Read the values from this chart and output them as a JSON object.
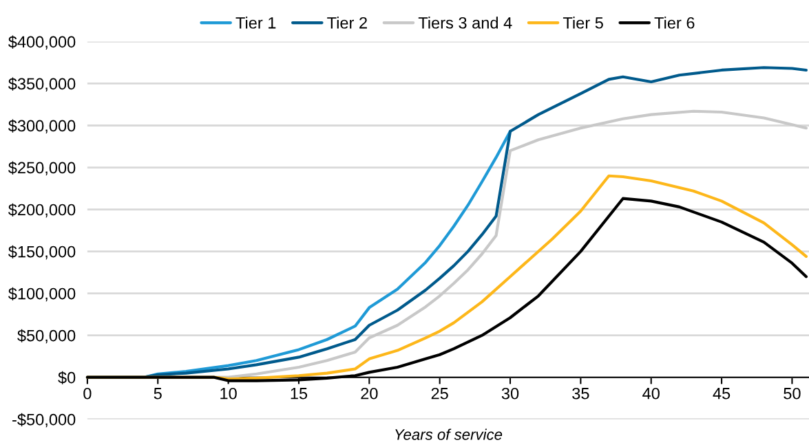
{
  "chart_data": {
    "type": "line",
    "xlabel": "Years of service",
    "xlim": [
      0,
      51.2
    ],
    "xticks": [
      0,
      5,
      10,
      15,
      20,
      25,
      30,
      35,
      40,
      45,
      50
    ],
    "ylim": [
      -50000,
      400000
    ],
    "yticks": [
      {
        "value": -50000,
        "label": "-$50,000"
      },
      {
        "value": 0,
        "label": "$0"
      },
      {
        "value": 50000,
        "label": "$50,000"
      },
      {
        "value": 100000,
        "label": "$100,000"
      },
      {
        "value": 150000,
        "label": "$150,000"
      },
      {
        "value": 200000,
        "label": "$200,000"
      },
      {
        "value": 250000,
        "label": "$250,000"
      },
      {
        "value": 300000,
        "label": "$300,000"
      },
      {
        "value": 350000,
        "label": "$350,000"
      },
      {
        "value": 400000,
        "label": "$400,000"
      }
    ],
    "grid": "y",
    "legend": "top",
    "line_style": "solid",
    "marker": "none",
    "series": [
      {
        "name": "Tier 1",
        "color": "#1f9ad6",
        "x": [
          0,
          4,
          5,
          7,
          10,
          12,
          15,
          17,
          19,
          20,
          22,
          24,
          25,
          26,
          27,
          28,
          29,
          30
        ],
        "values": [
          0,
          0,
          4000,
          7000,
          14000,
          20000,
          33000,
          45000,
          61000,
          83000,
          105000,
          137000,
          157000,
          180000,
          205000,
          233000,
          262000,
          293000
        ]
      },
      {
        "name": "Tier 2",
        "color": "#005a8c",
        "x": [
          0,
          4,
          5,
          7,
          10,
          12,
          15,
          17,
          19,
          20,
          22,
          24,
          25,
          26,
          27,
          28,
          29,
          30,
          32,
          35,
          37,
          38,
          40,
          42,
          45,
          48,
          50,
          51
        ],
        "values": [
          0,
          0,
          3000,
          5000,
          10000,
          15000,
          24000,
          34000,
          45000,
          62000,
          80000,
          104000,
          118000,
          133000,
          150000,
          170000,
          192000,
          293000,
          313000,
          338000,
          355000,
          358000,
          352000,
          360000,
          366000,
          369000,
          368000,
          366000
        ]
      },
      {
        "name": "Tiers 3 and 4",
        "color": "#c8c8c8",
        "x": [
          0,
          10,
          12,
          15,
          17,
          19,
          20,
          22,
          24,
          25,
          26,
          27,
          28,
          29,
          30,
          32,
          35,
          38,
          40,
          43,
          45,
          48,
          50,
          51
        ],
        "values": [
          0,
          0,
          4000,
          12000,
          20000,
          30000,
          47000,
          62000,
          84000,
          97000,
          112000,
          128000,
          147000,
          169000,
          270000,
          283000,
          297000,
          308000,
          313000,
          317000,
          316000,
          309000,
          301000,
          297000
        ]
      },
      {
        "name": "Tier 5",
        "color": "#fdb71a",
        "x": [
          0,
          9,
          10,
          12,
          15,
          17,
          19,
          20,
          22,
          24,
          25,
          26,
          28,
          30,
          33,
          35,
          37,
          38,
          40,
          43,
          45,
          48,
          50,
          51
        ],
        "values": [
          0,
          0,
          -2000,
          -1000,
          2000,
          5000,
          10000,
          22000,
          32000,
          47000,
          55000,
          65000,
          90000,
          120000,
          165000,
          198000,
          240000,
          239000,
          234000,
          222000,
          210000,
          184000,
          158000,
          144000
        ]
      },
      {
        "name": "Tier 6",
        "color": "#000000",
        "x": [
          0,
          9,
          10,
          12,
          15,
          17,
          19,
          20,
          22,
          24,
          25,
          26,
          28,
          30,
          32,
          35,
          38,
          40,
          42,
          45,
          48,
          50,
          51
        ],
        "values": [
          0,
          0,
          -4000,
          -4000,
          -3000,
          -1000,
          2000,
          6000,
          12000,
          22000,
          27000,
          34000,
          50000,
          71000,
          97000,
          150000,
          213000,
          210000,
          203000,
          185000,
          161000,
          136000,
          120000
        ]
      }
    ]
  }
}
